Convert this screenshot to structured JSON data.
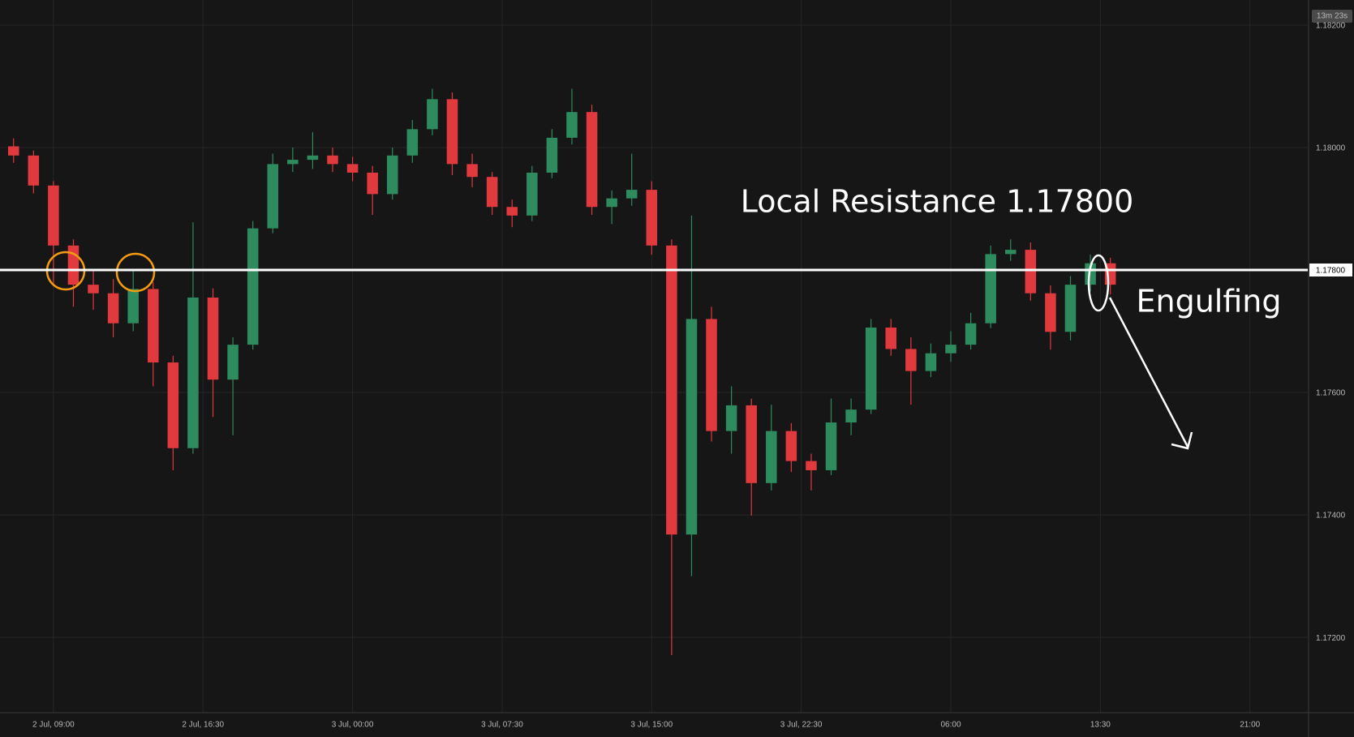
{
  "chart_data": {
    "type": "candlestick",
    "x": [
      7,
      8,
      9,
      10,
      11,
      12,
      13,
      14,
      15,
      16,
      17,
      18,
      19,
      20,
      21,
      22,
      23,
      24,
      25,
      26,
      27,
      28,
      29,
      30,
      31,
      32,
      33,
      34,
      35,
      36,
      37,
      38,
      39,
      40,
      41,
      42,
      43,
      44,
      45,
      46,
      47,
      48,
      49,
      50,
      51,
      52,
      53,
      54,
      55,
      56,
      57,
      58,
      59,
      60,
      61,
      62
    ],
    "open": [
      1.18002,
      1.17987,
      1.17938,
      1.1784,
      1.17776,
      1.17762,
      1.17713,
      1.17769,
      1.17649,
      1.17509,
      1.17755,
      1.17621,
      1.17678,
      1.17868,
      1.17973,
      1.1798,
      1.17987,
      1.17973,
      1.17959,
      1.17924,
      1.17987,
      1.1803,
      1.18079,
      1.17973,
      1.17952,
      1.17903,
      1.17889,
      1.17959,
      1.18016,
      1.18058,
      1.17903,
      1.17917,
      1.17931,
      1.1784,
      1.17368,
      1.1772,
      1.17537,
      1.17579,
      1.17452,
      1.17537,
      1.17488,
      1.17473,
      1.17551,
      1.17572,
      1.17706,
      1.17671,
      1.17635,
      1.17664,
      1.17678,
      1.17713,
      1.17826,
      1.17833,
      1.17762,
      1.17699,
      1.17776,
      1.17811
    ],
    "high": [
      1.18015,
      1.17995,
      1.17945,
      1.1785,
      1.178,
      1.17785,
      1.178,
      1.1778,
      1.1766,
      1.17878,
      1.1777,
      1.1769,
      1.1788,
      1.1799,
      1.18,
      1.18025,
      1.18,
      1.17985,
      1.1797,
      1.18,
      1.18045,
      1.18096,
      1.1809,
      1.1799,
      1.1796,
      1.17915,
      1.1797,
      1.1803,
      1.18096,
      1.1807,
      1.1793,
      1.1799,
      1.17945,
      1.1785,
      1.17889,
      1.1774,
      1.1761,
      1.1759,
      1.1758,
      1.1755,
      1.175,
      1.1759,
      1.1759,
      1.1772,
      1.1772,
      1.1769,
      1.1768,
      1.177,
      1.1773,
      1.1784,
      1.1785,
      1.17845,
      1.17775,
      1.1779,
      1.17825,
      1.1782
    ],
    "low": [
      1.17975,
      1.17925,
      1.17775,
      1.1774,
      1.17735,
      1.1769,
      1.177,
      1.1761,
      1.17473,
      1.175,
      1.1756,
      1.1753,
      1.1767,
      1.1786,
      1.1796,
      1.17965,
      1.1796,
      1.17945,
      1.1789,
      1.17915,
      1.17975,
      1.1802,
      1.17955,
      1.17935,
      1.1789,
      1.1787,
      1.1788,
      1.1795,
      1.18005,
      1.1789,
      1.17875,
      1.17905,
      1.17825,
      1.17171,
      1.173,
      1.1752,
      1.175,
      1.17399,
      1.1744,
      1.1747,
      1.1744,
      1.17465,
      1.1753,
      1.17565,
      1.1766,
      1.1758,
      1.17625,
      1.1765,
      1.1767,
      1.17705,
      1.17815,
      1.1775,
      1.1767,
      1.17685,
      1.17765,
      1.1776
    ],
    "close": [
      1.17987,
      1.17938,
      1.1784,
      1.17776,
      1.17762,
      1.17713,
      1.17769,
      1.17649,
      1.17509,
      1.17755,
      1.17621,
      1.17678,
      1.17868,
      1.17973,
      1.1798,
      1.17987,
      1.17973,
      1.17959,
      1.17924,
      1.17987,
      1.1803,
      1.18079,
      1.17973,
      1.17952,
      1.17903,
      1.17889,
      1.17959,
      1.18016,
      1.18058,
      1.17903,
      1.17917,
      1.17931,
      1.1784,
      1.17368,
      1.1772,
      1.17537,
      1.17579,
      1.17452,
      1.17537,
      1.17488,
      1.17473,
      1.17551,
      1.17572,
      1.17706,
      1.17671,
      1.17635,
      1.17664,
      1.17678,
      1.17713,
      1.17826,
      1.17833,
      1.17762,
      1.17699,
      1.17776,
      1.17811,
      1.17776
    ],
    "up_color": "#2e8b5e",
    "down_color": "#e0393e",
    "xlim": [
      6.32,
      71.9
    ],
    "xticks": [
      {
        "value": 9,
        "label": "2 Jul, 09:00"
      },
      {
        "value": 16.5,
        "label": "2 Jul, 16:30"
      },
      {
        "value": 24,
        "label": "3 Jul, 00:00"
      },
      {
        "value": 31.5,
        "label": "3 Jul, 07:30"
      },
      {
        "value": 39,
        "label": "3 Jul, 15:00"
      },
      {
        "value": 46.5,
        "label": "3 Jul, 22:30"
      },
      {
        "value": 54,
        "label": "06:00"
      },
      {
        "value": 61.5,
        "label": "13:30"
      },
      {
        "value": 69,
        "label": "21:00"
      }
    ],
    "ylim": [
      1.17077,
      1.18241
    ],
    "yticks": [
      {
        "value": 1.172,
        "label": "1.17200"
      },
      {
        "value": 1.174,
        "label": "1.17400"
      },
      {
        "value": 1.176,
        "label": "1.17600"
      },
      {
        "value": 1.178,
        "label": "1.17800"
      },
      {
        "value": 1.18,
        "label": "1.18000"
      },
      {
        "value": 1.182,
        "label": "1.18200"
      }
    ],
    "grid": true,
    "resistance": {
      "value": 1.178,
      "label": "1.17800"
    },
    "annotations": [
      "Local Resistance 1.17800",
      "Engulfing"
    ],
    "countdown": "13m 23s"
  }
}
